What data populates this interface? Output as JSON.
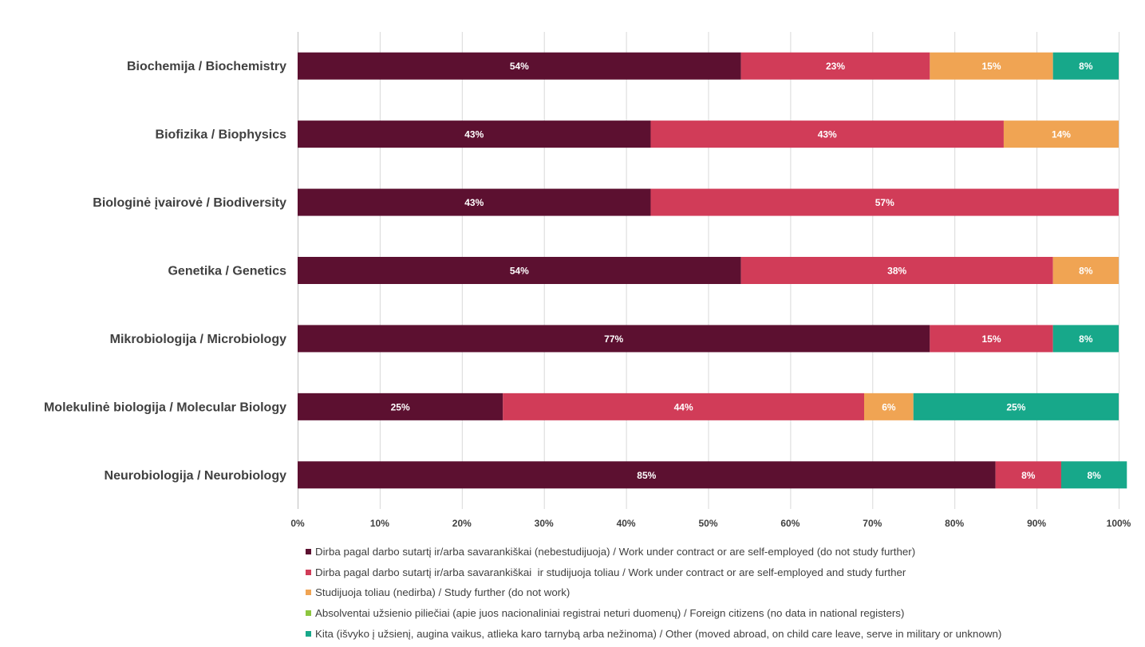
{
  "chart_data": {
    "type": "bar",
    "orientation": "horizontal",
    "stacked": true,
    "percent_stacked": true,
    "title": "",
    "xlabel": "",
    "ylabel": "",
    "xlim": [
      0,
      100
    ],
    "x_ticks": [
      "0%",
      "10%",
      "20%",
      "30%",
      "40%",
      "50%",
      "60%",
      "70%",
      "80%",
      "90%",
      "100%"
    ],
    "grid": true,
    "legend_position": "bottom",
    "categories": [
      "Biochemija / Biochemistry",
      "Biofizika / Biophysics",
      "Biologinė įvairovė / Biodiversity",
      "Genetika / Genetics",
      "Mikrobiologija / Microbiology",
      "Molekulinė biologija / Molecular Biology",
      "Neurobiologija / Neurobiology"
    ],
    "series": [
      {
        "name": "Dirba pagal darbo sutartį ir/arba savarankiškai (nebestudijuoja) / Work under contract or are self-employed (do not study further)",
        "color": "#5c1030",
        "values": [
          54,
          43,
          43,
          54,
          77,
          25,
          85
        ]
      },
      {
        "name": "Dirba pagal darbo sutartį ir/arba savarankiškai  ir studijuoja toliau / Work under contract or are self-employed and study further",
        "color": "#d13c58",
        "values": [
          23,
          43,
          57,
          38,
          15,
          44,
          8
        ]
      },
      {
        "name": "Studijuoja toliau (nedirba) / Study further (do not work)",
        "color": "#f0a453",
        "values": [
          15,
          14,
          0,
          8,
          0,
          6,
          0
        ]
      },
      {
        "name": "Absolventai užsienio piliečiai (apie juos nacionaliniai registrai neturi duomenų) / Foreign citizens (no data in national registers)",
        "color": "#8dc63f",
        "values": [
          0,
          0,
          0,
          0,
          0,
          0,
          0
        ]
      },
      {
        "name": "Kita (išvyko į užsienį, augina vaikus, atlieka karo tarnybą arba nežinoma) / Other (moved abroad, on child care leave, serve in military or unknown)",
        "color": "#17a88a",
        "values": [
          8,
          0,
          0,
          0,
          8,
          25,
          8
        ]
      }
    ]
  }
}
